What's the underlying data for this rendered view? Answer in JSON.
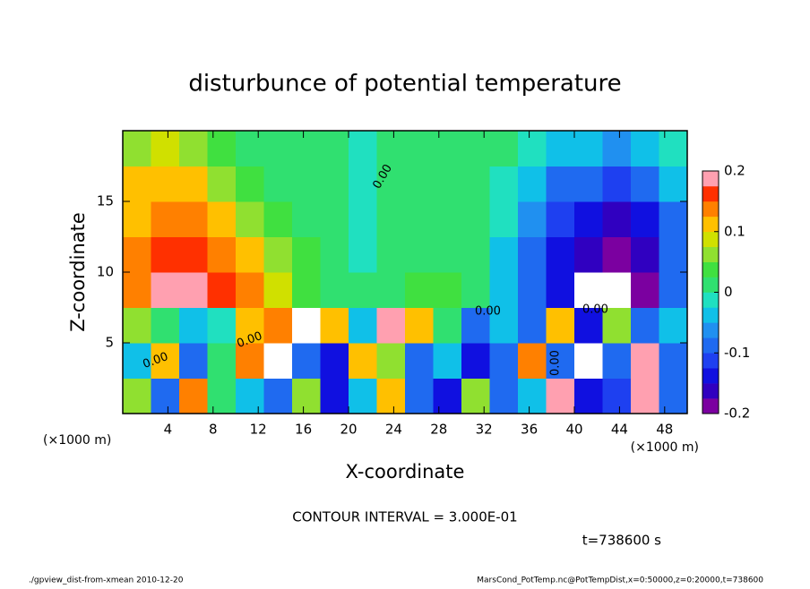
{
  "chart_data": {
    "type": "heatmap",
    "title": "disturbunce of potential temperature",
    "x_label": "X-coordinate",
    "y_label": "Z-coordinate",
    "x_unit": "(×1000 m)",
    "y_unit": "(×1000 m)",
    "contour_label": "0.00",
    "contour_interval": "CONTOUR INTERVAL = 3.000E-01",
    "time_label": "t=738600 s",
    "footer_left": "./gpview_dist-from-xmean  2010-12-20",
    "footer_right": "MarsCond_PotTemp.nc@PotTempDist,x=0:50000,z=0:20000,t=738600",
    "xlim": [
      0,
      50
    ],
    "ylim": [
      0,
      20
    ],
    "xticks": [
      4,
      8,
      12,
      16,
      20,
      24,
      28,
      32,
      36,
      40,
      44,
      48
    ],
    "yticks": [
      5,
      10,
      15
    ],
    "x": [
      1.25,
      3.75,
      6.25,
      8.75,
      11.25,
      13.75,
      16.25,
      18.75,
      21.25,
      23.75,
      26.25,
      28.75,
      31.25,
      33.75,
      36.25,
      38.75,
      41.25,
      43.75,
      46.25,
      48.75
    ],
    "y": [
      1.25,
      3.75,
      6.25,
      8.75,
      11.25,
      13.75,
      16.25,
      18.75
    ],
    "values": [
      [
        0.05,
        -0.1,
        0.15,
        0,
        -0.05,
        -0.1,
        0.05,
        -0.15,
        -0.05,
        0.1,
        -0.1,
        -0.15,
        0.05,
        -0.1,
        -0.05,
        0.2,
        -0.15,
        -0.12,
        0.2,
        -0.1
      ],
      [
        -0.05,
        0.1,
        -0.1,
        0,
        0.15,
        0.25,
        -0.1,
        -0.15,
        0.12,
        0.05,
        -0.1,
        -0.05,
        -0.15,
        -0.1,
        0.15,
        -0.1,
        0.22,
        -0.1,
        0.18,
        -0.1
      ],
      [
        0.05,
        0.02,
        -0.05,
        -0.02,
        0.1,
        0.15,
        0.25,
        0.1,
        -0.05,
        0.2,
        0.1,
        0,
        -0.1,
        -0.05,
        -0.1,
        0.1,
        -0.15,
        0.05,
        -0.1,
        -0.05
      ],
      [
        0.15,
        0.18,
        0.2,
        0.17,
        0.13,
        0.08,
        0.04,
        0.02,
        0.01,
        0.02,
        0.03,
        0.03,
        0.01,
        -0.03,
        -0.08,
        -0.14,
        -0.22,
        -0.21,
        -0.18,
        -0.1
      ],
      [
        0.13,
        0.16,
        0.17,
        0.15,
        0.1,
        0.06,
        0.03,
        0.01,
        -0.01,
        0.01,
        0.02,
        0.02,
        0,
        -0.03,
        -0.08,
        -0.14,
        -0.17,
        -0.19,
        -0.16,
        -0.1
      ],
      [
        0.12,
        0.15,
        0.15,
        0.11,
        0.07,
        0.04,
        0.02,
        0,
        -0.01,
        0.01,
        0.02,
        0.01,
        0,
        -0.02,
        -0.07,
        -0.12,
        -0.15,
        -0.17,
        -0.14,
        -0.08
      ],
      [
        0.1,
        0.12,
        0.1,
        0.07,
        0.04,
        0.02,
        0.01,
        0,
        -0.01,
        0,
        0.01,
        0.01,
        0,
        -0.01,
        -0.05,
        -0.08,
        -0.1,
        -0.12,
        -0.09,
        -0.05
      ],
      [
        0.07,
        0.08,
        0.06,
        0.04,
        0.02,
        0.01,
        0,
        0,
        -0.01,
        0,
        0,
        0.01,
        0,
        0,
        -0.02,
        -0.04,
        -0.05,
        -0.06,
        -0.04,
        -0.02
      ]
    ],
    "colorbar": {
      "lim": [
        -0.2,
        0.2
      ],
      "ticks": [
        -0.2,
        -0.1,
        0,
        0.1,
        0.2
      ]
    },
    "colors": [
      "#7b00a0",
      "#3000c0",
      "#1010e0",
      "#1e40f0",
      "#1f6af0",
      "#2090f0",
      "#10c0e8",
      "#20e0c0",
      "#30e070",
      "#40e040",
      "#90e030",
      "#d0e000",
      "#ffc000",
      "#ff8000",
      "#ff3000",
      "#ffa0b0"
    ],
    "over_color": "#ffffff",
    "under_color": "#ffffff"
  }
}
